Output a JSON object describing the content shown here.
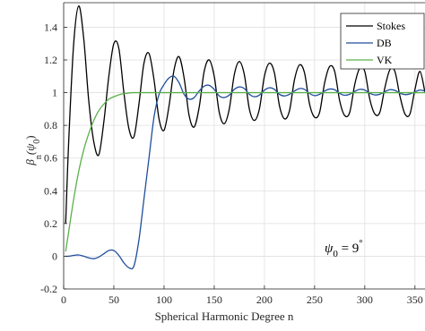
{
  "chart_data": {
    "type": "line",
    "xlabel": "Spherical Harmonic Degree n",
    "ylabel": "β_n(ψ_0)",
    "ylabel_main": "β",
    "ylabel_sub": "n",
    "ylabel_arg": "(ψ",
    "ylabel_arg_sub": "0",
    "ylabel_close": ")",
    "xlim": [
      0,
      360
    ],
    "ylim": [
      -0.2,
      1.55
    ],
    "xticks": [
      0,
      50,
      100,
      150,
      200,
      250,
      300,
      350
    ],
    "yticks": [
      -0.2,
      0,
      0.2,
      0.4,
      0.6,
      0.8,
      1,
      1.2,
      1.4
    ],
    "ytick_labels": [
      "-0.2",
      "0",
      "0.2",
      "0.4",
      "0.6",
      "0.8",
      "1",
      "1.2",
      "1.4"
    ],
    "xtick_labels": [
      "0",
      "50",
      "100",
      "150",
      "200",
      "250",
      "300",
      "350"
    ],
    "legend_position": "top-right",
    "grid": true,
    "annotation": {
      "symbol": "ψ",
      "sub": "0",
      "text": " = 9",
      "sup": "°"
    },
    "series": [
      {
        "name": "Stokes",
        "color": "#000000",
        "x": [
          2,
          5,
          10,
          15,
          20,
          25,
          30,
          35,
          40,
          45,
          50,
          55,
          60,
          65,
          70,
          75,
          80,
          85,
          90,
          95,
          100,
          105,
          110,
          115,
          120,
          125,
          130,
          135,
          140,
          145,
          150,
          155,
          160,
          165,
          170,
          175,
          180,
          185,
          190,
          195,
          200,
          205,
          210,
          215,
          220,
          225,
          230,
          235,
          240,
          245,
          250,
          255,
          260,
          265,
          270,
          275,
          280,
          285,
          290,
          295,
          300,
          305,
          310,
          315,
          320,
          325,
          330,
          335,
          340,
          345,
          350,
          355,
          360
        ],
        "y": [
          0.2,
          0.7,
          1.3,
          1.53,
          1.33,
          0.95,
          0.7,
          0.62,
          0.82,
          1.1,
          1.3,
          1.27,
          1.0,
          0.78,
          0.73,
          0.93,
          1.18,
          1.24,
          1.08,
          0.84,
          0.77,
          0.92,
          1.14,
          1.22,
          1.09,
          0.86,
          0.79,
          0.91,
          1.13,
          1.2,
          1.1,
          0.88,
          0.81,
          0.9,
          1.11,
          1.19,
          1.11,
          0.9,
          0.83,
          0.9,
          1.1,
          1.18,
          1.12,
          0.92,
          0.84,
          0.89,
          1.08,
          1.17,
          1.12,
          0.93,
          0.85,
          0.88,
          1.06,
          1.16,
          1.13,
          0.95,
          0.86,
          0.88,
          1.05,
          1.15,
          1.13,
          0.96,
          0.87,
          0.88,
          1.03,
          1.14,
          1.13,
          0.98,
          0.87,
          0.87,
          1.02,
          1.13,
          1.0
        ]
      },
      {
        "name": "DB",
        "color": "#1f4e9c",
        "x": [
          2,
          5,
          10,
          15,
          20,
          25,
          30,
          35,
          40,
          45,
          50,
          55,
          60,
          65,
          70,
          75,
          80,
          85,
          90,
          95,
          100,
          105,
          110,
          115,
          120,
          125,
          130,
          135,
          140,
          145,
          150,
          155,
          160,
          165,
          170,
          175,
          180,
          185,
          190,
          195,
          200,
          205,
          210,
          215,
          220,
          225,
          230,
          235,
          240,
          245,
          250,
          255,
          260,
          265,
          270,
          275,
          280,
          285,
          290,
          295,
          300,
          305,
          310,
          315,
          320,
          325,
          330,
          335,
          340,
          345,
          350,
          355,
          360
        ],
        "y": [
          0.0,
          0.0,
          0.005,
          0.008,
          0.0,
          -0.01,
          -0.015,
          -0.005,
          0.015,
          0.035,
          0.035,
          0.005,
          -0.04,
          -0.07,
          -0.06,
          0.1,
          0.35,
          0.6,
          0.85,
          0.99,
          1.05,
          1.09,
          1.1,
          1.06,
          0.99,
          0.96,
          0.97,
          1.01,
          1.04,
          1.045,
          1.02,
          0.98,
          0.97,
          0.985,
          1.02,
          1.035,
          1.025,
          0.99,
          0.975,
          0.985,
          1.015,
          1.03,
          1.02,
          0.99,
          0.98,
          0.99,
          1.01,
          1.025,
          1.02,
          0.995,
          0.982,
          0.99,
          1.01,
          1.022,
          1.018,
          0.995,
          0.984,
          0.99,
          1.008,
          1.02,
          1.016,
          0.996,
          0.986,
          0.99,
          1.006,
          1.018,
          1.014,
          0.997,
          0.988,
          0.992,
          1.005,
          1.016,
          1.01
        ]
      },
      {
        "name": "VK",
        "color": "#5ab04a",
        "x": [
          2,
          5,
          10,
          15,
          20,
          25,
          30,
          35,
          40,
          45,
          50,
          55,
          60,
          65,
          70,
          75,
          80,
          90,
          100,
          120,
          150,
          200,
          250,
          300,
          350,
          360
        ],
        "y": [
          0.03,
          0.15,
          0.35,
          0.52,
          0.65,
          0.75,
          0.83,
          0.89,
          0.93,
          0.96,
          0.975,
          0.987,
          0.994,
          0.998,
          1.0,
          1.0,
          1.0,
          1.0,
          1.0,
          1.0,
          1.0,
          1.0,
          1.0,
          1.0,
          1.0,
          1.0
        ]
      }
    ]
  }
}
